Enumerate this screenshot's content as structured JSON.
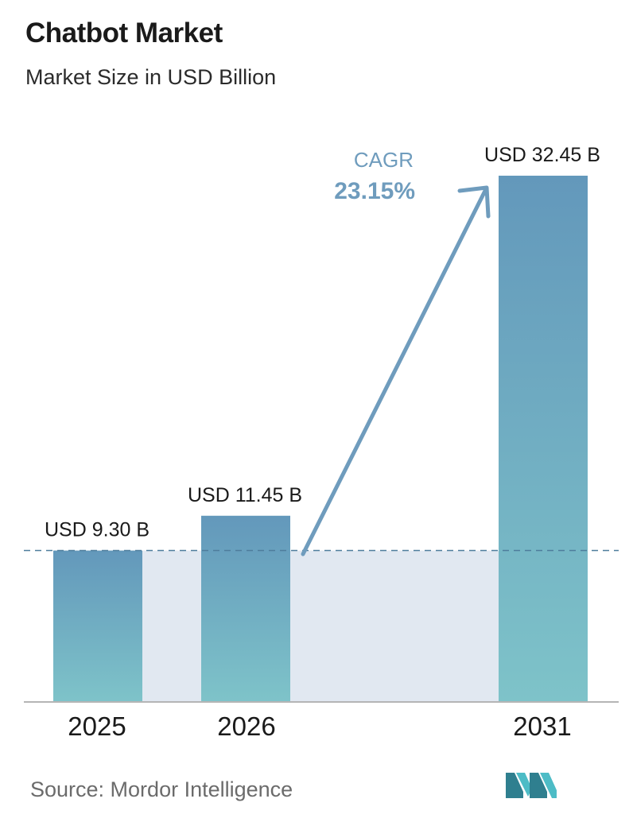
{
  "header": {
    "title": "Chatbot Market",
    "subtitle": "Market Size in USD Billion"
  },
  "chart_data": {
    "type": "bar",
    "categories": [
      "2025",
      "2026",
      "2031"
    ],
    "values": [
      9.3,
      11.45,
      32.45
    ],
    "value_labels": [
      "USD 9.30 B",
      "USD 11.45 B",
      "USD 32.45 B"
    ],
    "title": "Chatbot Market",
    "subtitle": "Market Size in USD Billion",
    "xlabel": "",
    "ylabel": "",
    "ylim": [
      0,
      32.45
    ],
    "grid": false,
    "legend": "none",
    "annotation": {
      "label": "CAGR",
      "value": "23.15%"
    },
    "colors": {
      "bar_top": "#6398bb",
      "bar_bottom": "#7ec3c9",
      "background_band": "#e1e8f1",
      "reference_line": "#4e7d9c",
      "arrow": "#6f9cbd",
      "axis": "#b5b5b5"
    }
  },
  "footer": {
    "source": "Source:  Mordor Intelligence",
    "logo_icon": "mordor-intelligence-logo-icon"
  }
}
